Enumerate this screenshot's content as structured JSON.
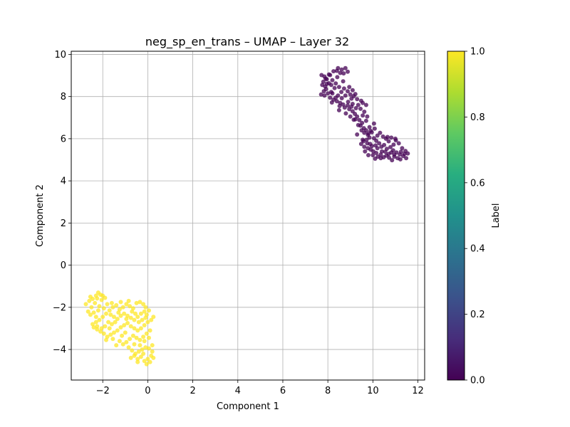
{
  "chart_data": {
    "type": "scatter",
    "title": "neg_sp_en_trans – UMAP – Layer 32",
    "xlabel": "Component 1",
    "ylabel": "Component 2",
    "xlim": [
      -3.4,
      12.3
    ],
    "ylim": [
      -5.45,
      10.15
    ],
    "xticks": [
      -2,
      0,
      2,
      4,
      6,
      8,
      10,
      12
    ],
    "yticks": [
      -4,
      -2,
      0,
      2,
      4,
      6,
      8,
      10
    ],
    "grid": true,
    "colorbar": {
      "label": "Label",
      "range": [
        0.0,
        1.0
      ],
      "ticks": [
        "0.0",
        "0.2",
        "0.4",
        "0.6",
        "0.8",
        "1.0"
      ],
      "colormap": "viridis"
    },
    "marker_alpha": 0.75,
    "clusters": [
      {
        "label_value": 0,
        "color": "#440154",
        "points": [
          [
            7.72,
            9.02
          ],
          [
            7.85,
            8.95
          ],
          [
            7.95,
            8.82
          ],
          [
            7.8,
            8.7
          ],
          [
            7.75,
            8.55
          ],
          [
            7.88,
            8.48
          ],
          [
            8.05,
            8.63
          ],
          [
            7.92,
            8.35
          ],
          [
            8.15,
            8.22
          ],
          [
            7.7,
            8.1
          ],
          [
            7.85,
            8.05
          ],
          [
            8.0,
            8.15
          ],
          [
            8.1,
            7.95
          ],
          [
            8.25,
            7.85
          ],
          [
            8.18,
            7.72
          ],
          [
            8.4,
            7.78
          ],
          [
            8.55,
            7.7
          ],
          [
            8.68,
            7.62
          ],
          [
            8.52,
            7.55
          ],
          [
            8.75,
            7.48
          ],
          [
            8.88,
            7.58
          ],
          [
            8.95,
            7.4
          ],
          [
            9.05,
            7.52
          ],
          [
            9.1,
            7.3
          ],
          [
            9.2,
            7.18
          ],
          [
            9.3,
            7.05
          ],
          [
            9.22,
            6.92
          ],
          [
            9.4,
            6.88
          ],
          [
            9.52,
            6.75
          ],
          [
            9.45,
            6.62
          ],
          [
            9.6,
            6.5
          ],
          [
            9.7,
            6.4
          ],
          [
            9.62,
            6.28
          ],
          [
            9.78,
            6.18
          ],
          [
            9.85,
            6.05
          ],
          [
            9.72,
            5.95
          ],
          [
            9.58,
            5.88
          ],
          [
            9.48,
            5.75
          ],
          [
            9.62,
            5.62
          ],
          [
            9.78,
            5.55
          ],
          [
            9.9,
            5.48
          ],
          [
            10.02,
            5.4
          ],
          [
            10.15,
            5.32
          ],
          [
            10.0,
            5.22
          ],
          [
            10.22,
            5.15
          ],
          [
            10.35,
            5.08
          ],
          [
            10.48,
            5.12
          ],
          [
            10.6,
            5.2
          ],
          [
            10.72,
            5.1
          ],
          [
            10.85,
            4.98
          ],
          [
            10.95,
            5.15
          ],
          [
            11.1,
            5.08
          ],
          [
            11.22,
            5.02
          ],
          [
            11.35,
            5.18
          ],
          [
            11.48,
            5.08
          ],
          [
            11.55,
            5.3
          ],
          [
            11.45,
            5.42
          ],
          [
            11.3,
            5.55
          ],
          [
            11.25,
            5.38
          ],
          [
            11.05,
            5.35
          ],
          [
            10.9,
            5.45
          ],
          [
            10.78,
            5.6
          ],
          [
            10.62,
            5.52
          ],
          [
            10.5,
            5.7
          ],
          [
            10.38,
            5.62
          ],
          [
            10.28,
            5.78
          ],
          [
            10.15,
            5.9
          ],
          [
            10.05,
            6.02
          ],
          [
            10.2,
            6.15
          ],
          [
            10.32,
            6.28
          ],
          [
            10.45,
            6.1
          ],
          [
            10.58,
            6.0
          ],
          [
            10.7,
            5.88
          ],
          [
            10.82,
            6.05
          ],
          [
            11.02,
            5.92
          ],
          [
            11.15,
            5.78
          ],
          [
            10.92,
            5.72
          ],
          [
            10.4,
            5.4
          ],
          [
            9.95,
            5.65
          ],
          [
            9.75,
            5.78
          ],
          [
            9.55,
            5.95
          ],
          [
            9.65,
            5.4
          ],
          [
            9.8,
            5.22
          ],
          [
            10.1,
            5.05
          ],
          [
            9.95,
            6.3
          ],
          [
            9.85,
            6.55
          ],
          [
            10.05,
            6.72
          ],
          [
            9.7,
            6.85
          ],
          [
            9.55,
            7.1
          ],
          [
            9.45,
            7.42
          ],
          [
            9.35,
            7.6
          ],
          [
            9.62,
            7.28
          ],
          [
            9.75,
            7.05
          ],
          [
            9.48,
            7.8
          ],
          [
            9.3,
            7.88
          ],
          [
            9.15,
            8.02
          ],
          [
            9.0,
            8.1
          ],
          [
            8.88,
            8.25
          ],
          [
            8.95,
            8.45
          ],
          [
            9.1,
            8.3
          ],
          [
            9.22,
            8.12
          ],
          [
            8.78,
            8.05
          ],
          [
            8.62,
            7.92
          ],
          [
            8.45,
            8.05
          ],
          [
            8.6,
            8.22
          ],
          [
            8.72,
            8.38
          ],
          [
            8.5,
            8.45
          ],
          [
            8.35,
            8.62
          ],
          [
            8.2,
            8.78
          ],
          [
            8.1,
            9.02
          ],
          [
            8.25,
            9.2
          ],
          [
            8.45,
            9.35
          ],
          [
            8.62,
            9.28
          ],
          [
            8.78,
            9.35
          ],
          [
            8.55,
            9.12
          ],
          [
            8.7,
            9.1
          ],
          [
            8.88,
            9.18
          ],
          [
            8.42,
            8.92
          ],
          [
            8.3,
            8.4
          ],
          [
            8.15,
            8.55
          ],
          [
            7.95,
            8.6
          ],
          [
            8.05,
            9.05
          ],
          [
            7.82,
            8.25
          ],
          [
            8.68,
            8.72
          ],
          [
            8.9,
            7.75
          ],
          [
            9.1,
            7.65
          ],
          [
            9.25,
            7.45
          ],
          [
            9.05,
            7.9
          ],
          [
            8.35,
            7.95
          ],
          [
            8.5,
            7.35
          ],
          [
            8.8,
            7.2
          ],
          [
            9.15,
            6.9
          ],
          [
            9.0,
            7.05
          ],
          [
            9.35,
            6.65
          ],
          [
            9.9,
            6.38
          ],
          [
            10.08,
            6.48
          ],
          [
            10.2,
            5.55
          ],
          [
            10.55,
            5.38
          ],
          [
            10.7,
            5.28
          ],
          [
            10.95,
            5.25
          ],
          [
            11.2,
            5.25
          ],
          [
            11.4,
            5.28
          ],
          [
            10.35,
            5.25
          ],
          [
            9.88,
            5.75
          ],
          [
            10.12,
            5.68
          ],
          [
            10.82,
            5.35
          ],
          [
            11.0,
            6.0
          ],
          [
            10.65,
            6.08
          ],
          [
            9.5,
            6.4
          ],
          [
            9.3,
            6.2
          ],
          [
            9.7,
            7.6
          ],
          [
            9.55,
            7.7
          ],
          [
            8.4,
            9.22
          ],
          [
            8.2,
            8.15
          ],
          [
            7.9,
            8.85
          ],
          [
            9.8,
            6.25
          ]
        ]
      },
      {
        "label_value": 1,
        "color": "#fde725",
        "points": [
          [
            -2.75,
            -1.85
          ],
          [
            -2.6,
            -1.7
          ],
          [
            -2.45,
            -1.6
          ],
          [
            -2.3,
            -1.45
          ],
          [
            -2.2,
            -1.3
          ],
          [
            -2.1,
            -1.4
          ],
          [
            -2.25,
            -1.58
          ],
          [
            -2.05,
            -1.65
          ],
          [
            -1.9,
            -1.55
          ],
          [
            -2.35,
            -1.8
          ],
          [
            -2.5,
            -2.0
          ],
          [
            -2.15,
            -1.95
          ],
          [
            -1.95,
            -2.05
          ],
          [
            -1.8,
            -1.85
          ],
          [
            -1.7,
            -2.15
          ],
          [
            -1.55,
            -2.0
          ],
          [
            -1.4,
            -1.9
          ],
          [
            -1.25,
            -2.1
          ],
          [
            -1.1,
            -2.0
          ],
          [
            -0.95,
            -1.85
          ],
          [
            -0.8,
            -1.95
          ],
          [
            -0.65,
            -2.05
          ],
          [
            -0.5,
            -1.8
          ],
          [
            -0.35,
            -1.75
          ],
          [
            -0.2,
            -1.85
          ],
          [
            -0.1,
            -2.0
          ],
          [
            0.05,
            -2.15
          ],
          [
            -0.05,
            -2.35
          ],
          [
            -0.15,
            -2.2
          ],
          [
            -0.3,
            -2.3
          ],
          [
            -0.45,
            -2.45
          ],
          [
            -0.6,
            -2.6
          ],
          [
            -0.75,
            -2.5
          ],
          [
            -0.9,
            -2.4
          ],
          [
            -1.05,
            -2.3
          ],
          [
            -1.2,
            -2.4
          ],
          [
            -1.35,
            -2.55
          ],
          [
            -1.5,
            -2.45
          ],
          [
            -1.65,
            -2.35
          ],
          [
            -1.85,
            -2.3
          ],
          [
            -2.0,
            -2.45
          ],
          [
            -2.15,
            -2.6
          ],
          [
            -2.3,
            -2.7
          ],
          [
            -2.45,
            -2.8
          ],
          [
            -2.4,
            -2.95
          ],
          [
            -2.25,
            -3.05
          ],
          [
            -2.1,
            -3.15
          ],
          [
            -1.95,
            -3.25
          ],
          [
            -1.8,
            -3.4
          ],
          [
            -1.65,
            -3.3
          ],
          [
            -1.5,
            -3.2
          ],
          [
            -1.35,
            -3.1
          ],
          [
            -1.2,
            -2.95
          ],
          [
            -1.05,
            -2.85
          ],
          [
            -0.9,
            -2.75
          ],
          [
            -0.75,
            -2.9
          ],
          [
            -0.6,
            -3.0
          ],
          [
            -0.45,
            -3.1
          ],
          [
            -0.3,
            -3.0
          ],
          [
            -0.15,
            -2.85
          ],
          [
            0.0,
            -2.7
          ],
          [
            0.15,
            -2.6
          ],
          [
            0.25,
            -2.45
          ],
          [
            0.1,
            -3.1
          ],
          [
            -0.05,
            -3.25
          ],
          [
            -0.2,
            -3.4
          ],
          [
            -0.35,
            -3.55
          ],
          [
            -0.5,
            -3.45
          ],
          [
            -0.65,
            -3.35
          ],
          [
            -0.8,
            -3.5
          ],
          [
            -0.95,
            -3.65
          ],
          [
            -1.1,
            -3.75
          ],
          [
            -1.25,
            -3.6
          ],
          [
            -1.4,
            -3.8
          ],
          [
            -0.85,
            -3.9
          ],
          [
            -0.7,
            -4.05
          ],
          [
            -0.55,
            -4.2
          ],
          [
            -0.4,
            -4.1
          ],
          [
            -0.25,
            -4.0
          ],
          [
            -0.1,
            -3.9
          ],
          [
            0.05,
            -3.95
          ],
          [
            0.2,
            -4.1
          ],
          [
            0.15,
            -4.3
          ],
          [
            0.0,
            -4.45
          ],
          [
            -0.15,
            -4.55
          ],
          [
            -0.05,
            -4.7
          ],
          [
            0.1,
            -4.6
          ],
          [
            0.25,
            -4.4
          ],
          [
            -0.3,
            -4.35
          ],
          [
            -0.45,
            -4.45
          ],
          [
            -0.6,
            -4.3
          ],
          [
            -0.2,
            -4.2
          ],
          [
            -0.35,
            -3.8
          ],
          [
            -1.0,
            -3.2
          ],
          [
            -1.15,
            -3.35
          ],
          [
            -1.6,
            -2.8
          ],
          [
            -1.75,
            -2.7
          ],
          [
            -1.9,
            -2.9
          ],
          [
            -2.05,
            -3.0
          ],
          [
            -2.55,
            -2.35
          ],
          [
            -2.65,
            -2.2
          ],
          [
            -2.4,
            -2.25
          ],
          [
            -2.2,
            -2.15
          ],
          [
            -0.55,
            -2.3
          ],
          [
            -0.7,
            -2.2
          ],
          [
            -0.25,
            -2.6
          ],
          [
            -0.1,
            -2.5
          ],
          [
            -1.3,
            -2.25
          ],
          [
            -1.45,
            -2.7
          ],
          [
            -0.95,
            -2.55
          ],
          [
            -2.3,
            -2.45
          ],
          [
            -1.7,
            -3.0
          ],
          [
            -0.4,
            -2.7
          ],
          [
            0.05,
            -3.45
          ],
          [
            -0.6,
            -3.75
          ],
          [
            -1.2,
            -1.75
          ],
          [
            -0.85,
            -1.7
          ],
          [
            -2.0,
            -1.45
          ],
          [
            -2.55,
            -1.5
          ],
          [
            -1.6,
            -1.8
          ],
          [
            -0.15,
            -3.6
          ],
          [
            0.2,
            -3.8
          ],
          [
            -0.45,
            -4.6
          ],
          [
            -0.75,
            -4.4
          ],
          [
            -2.25,
            -2.9
          ],
          [
            -1.85,
            -3.55
          ],
          [
            -1.55,
            -3.5
          ]
        ]
      }
    ]
  }
}
